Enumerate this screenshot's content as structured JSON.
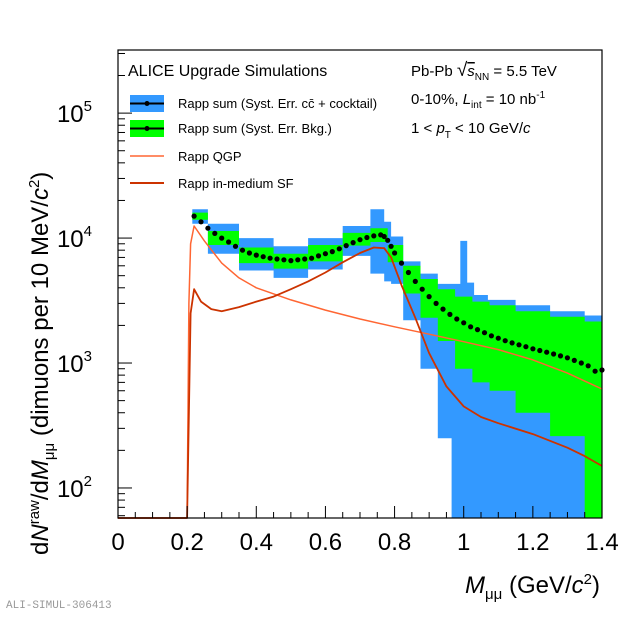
{
  "chart_data": {
    "type": "line",
    "title": "ALICE Upgrade Simulations",
    "xlabel": "M_μμ (GeV/c²)",
    "ylabel": "dN^raw/dM_μμ (dimuons per 10 MeV/c²)",
    "xlim": [
      0,
      1.4
    ],
    "ylim": [
      57.5,
      320000
    ],
    "yscale": "log",
    "x_ticks": [
      "0",
      "0.2",
      "0.4",
      "0.6",
      "0.8",
      "1",
      "1.2",
      "1.4"
    ],
    "x_tick_values": [
      0,
      0.2,
      0.4,
      0.6,
      0.8,
      1.0,
      1.2,
      1.4
    ],
    "y_ticks": [
      {
        "value": 100,
        "base": "10",
        "exp": "2"
      },
      {
        "value": 1000,
        "base": "10",
        "exp": "3"
      },
      {
        "value": 10000,
        "base": "10",
        "exp": "4"
      },
      {
        "value": 100000,
        "base": "10",
        "exp": "5"
      }
    ],
    "grid": false,
    "legend_position": "top-left",
    "legend": [
      {
        "label": "Rapp sum (Syst. Err. cc̄ + cocktail)",
        "kind": "band-marker",
        "color": "#3399ff"
      },
      {
        "label": "Rapp sum (Syst. Err. Bkg.)",
        "kind": "band-marker",
        "color": "#00ff00"
      },
      {
        "label": "Rapp QGP",
        "kind": "line",
        "color": "#ff6633"
      },
      {
        "label": "Rapp in-medium SF",
        "kind": "line",
        "color": "#cc3300"
      }
    ],
    "annotations": [
      "Pb-Pb √s_NN = 5.5 TeV",
      "0-10%, L_int = 10 nb^-1",
      "1 < p_T < 10 GeV/c"
    ],
    "series": [
      {
        "name": "Rapp sum",
        "style": "markers",
        "color": "#000000",
        "x": [
          0.22,
          0.24,
          0.26,
          0.28,
          0.3,
          0.32,
          0.34,
          0.36,
          0.38,
          0.4,
          0.42,
          0.44,
          0.46,
          0.48,
          0.5,
          0.52,
          0.54,
          0.56,
          0.58,
          0.6,
          0.62,
          0.64,
          0.66,
          0.68,
          0.7,
          0.72,
          0.74,
          0.76,
          0.77,
          0.78,
          0.79,
          0.8,
          0.82,
          0.84,
          0.86,
          0.88,
          0.9,
          0.92,
          0.94,
          0.96,
          0.98,
          1.0,
          1.02,
          1.04,
          1.06,
          1.08,
          1.1,
          1.12,
          1.14,
          1.16,
          1.18,
          1.2,
          1.22,
          1.24,
          1.26,
          1.28,
          1.3,
          1.32,
          1.34,
          1.36,
          1.38,
          1.4
        ],
        "y": [
          15000,
          13500,
          12000,
          10900,
          10000,
          9300,
          8600,
          8000,
          7600,
          7300,
          7100,
          6900,
          6800,
          6700,
          6600,
          6700,
          6800,
          6900,
          7200,
          7500,
          7800,
          8200,
          8700,
          9200,
          9700,
          10100,
          10400,
          10600,
          10300,
          9600,
          8600,
          7600,
          6300,
          5300,
          4500,
          3900,
          3400,
          3000,
          2700,
          2450,
          2250,
          2100,
          1950,
          1850,
          1750,
          1650,
          1580,
          1510,
          1450,
          1400,
          1350,
          1300,
          1260,
          1220,
          1180,
          1140,
          1100,
          1050,
          1000,
          950,
          860,
          880
        ]
      },
      {
        "name": "Syst. Err. Bkg. band (green)",
        "style": "band",
        "color": "#00ff00",
        "x": [
          0.22,
          0.3,
          0.4,
          0.5,
          0.6,
          0.7,
          0.76,
          0.8,
          0.85,
          0.9,
          0.95,
          1.0,
          1.05,
          1.1,
          1.2,
          1.3,
          1.4
        ],
        "upper": [
          16000,
          11400,
          8400,
          7500,
          8800,
          11000,
          12000,
          8800,
          6000,
          4700,
          3900,
          3400,
          3100,
          2900,
          2600,
          2350,
          2150
        ],
        "lower": [
          14000,
          8800,
          6300,
          5700,
          6500,
          8700,
          9300,
          6400,
          3600,
          2300,
          1500,
          900,
          700,
          600,
          400,
          260,
          57.5
        ]
      },
      {
        "name": "Syst. Err. cc̄ + cocktail band (blue)",
        "style": "band",
        "color": "#3399ff",
        "x": [
          0.22,
          0.3,
          0.4,
          0.5,
          0.6,
          0.7,
          0.76,
          0.78,
          0.8,
          0.85,
          0.9,
          0.95,
          0.98,
          1.0,
          1.02,
          1.04,
          1.1,
          1.2,
          1.3,
          1.4
        ],
        "upper": [
          17000,
          13000,
          10000,
          8600,
          10000,
          12500,
          17000,
          13500,
          10300,
          6500,
          5200,
          4300,
          4300,
          9500,
          4400,
          3500,
          3200,
          2900,
          2600,
          2400
        ],
        "lower": [
          13000,
          7500,
          5500,
          4800,
          5600,
          7200,
          5200,
          4500,
          4300,
          2200,
          900,
          250,
          57.5,
          57.5,
          57.5,
          57.5,
          57.5,
          57.5,
          57.5,
          57.5
        ]
      },
      {
        "name": "Rapp QGP",
        "style": "line",
        "color": "#ff6633",
        "x": [
          0.0,
          0.2,
          0.205,
          0.21,
          0.22,
          0.25,
          0.3,
          0.35,
          0.4,
          0.5,
          0.6,
          0.7,
          0.8,
          0.9,
          1.0,
          1.1,
          1.2,
          1.3,
          1.4
        ],
        "y": [
          57.5,
          57.5,
          3000,
          9000,
          12500,
          9500,
          6300,
          4800,
          4000,
          3200,
          2650,
          2250,
          1950,
          1700,
          1480,
          1280,
          1060,
          830,
          620
        ]
      },
      {
        "name": "Rapp in-medium SF",
        "style": "line",
        "color": "#cc3300",
        "x": [
          0.0,
          0.2,
          0.21,
          0.22,
          0.24,
          0.27,
          0.3,
          0.35,
          0.4,
          0.45,
          0.5,
          0.55,
          0.6,
          0.65,
          0.7,
          0.74,
          0.77,
          0.79,
          0.82,
          0.86,
          0.9,
          0.95,
          1.0,
          1.05,
          1.1,
          1.2,
          1.3,
          1.35,
          1.4
        ],
        "y": [
          57.5,
          57.5,
          2500,
          3900,
          3100,
          2700,
          2600,
          2800,
          3100,
          3400,
          3900,
          4500,
          5300,
          6400,
          7600,
          8400,
          8300,
          7000,
          4200,
          2300,
          1200,
          650,
          450,
          370,
          330,
          270,
          210,
          180,
          150
        ]
      }
    ]
  },
  "watermark": "ALI-SIMUL-306413"
}
